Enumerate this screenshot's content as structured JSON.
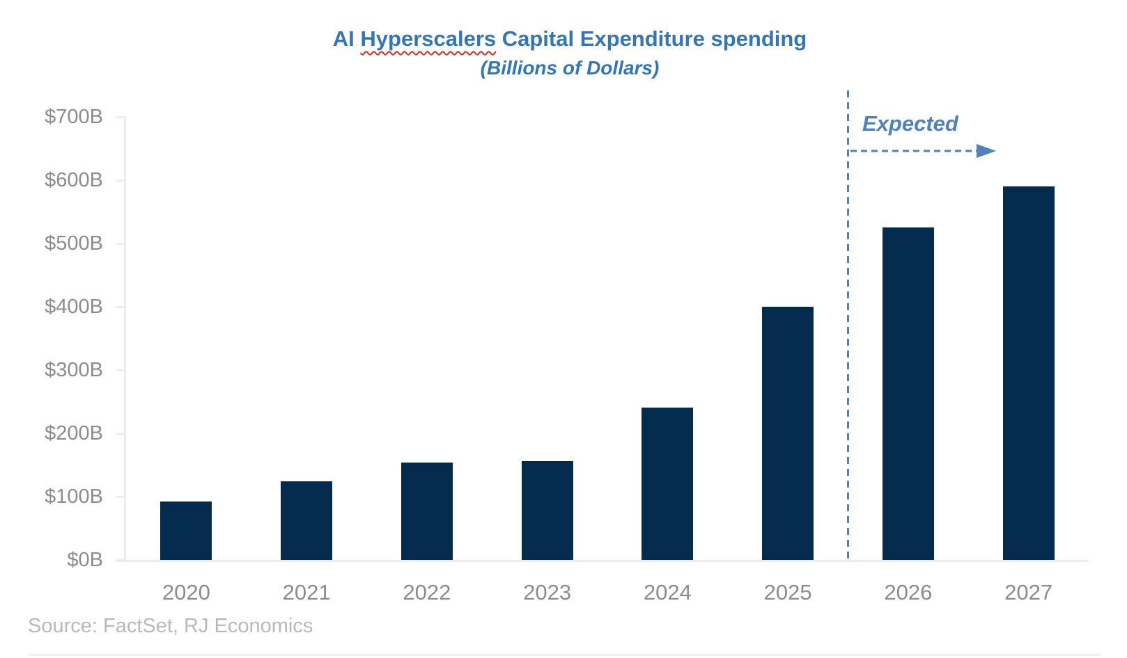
{
  "title": {
    "prefix": "AI ",
    "misspelled_word": "Hyperscalers",
    "suffix": " Capital Expenditure spending",
    "full": "AI Hyperscalers Capital Expenditure spending"
  },
  "subtitle": "(Billions of Dollars)",
  "annotation": {
    "expected_label": "Expected"
  },
  "source": "Source: FactSet, RJ Economics",
  "colors": {
    "bar": "#052c4f",
    "title_blue": "#3376b8",
    "expected_blue": "#4f81bd",
    "axis_gray": "#ececec",
    "label_gray": "#8c8c8c",
    "source_gray": "#b9b9b9",
    "squiggle_red": "#e0291d"
  },
  "chart_data": {
    "type": "bar",
    "title": "AI Hyperscalers Capital Expenditure spending",
    "subtitle": "(Billions of Dollars)",
    "categories": [
      "2020",
      "2021",
      "2022",
      "2023",
      "2024",
      "2025",
      "2026",
      "2027"
    ],
    "values": [
      92,
      124,
      154,
      156,
      241,
      400,
      525,
      590
    ],
    "unit": "billions of dollars",
    "ylabel": "",
    "xlabel": "",
    "ylim": [
      0,
      700
    ],
    "y_ticks": [
      0,
      100,
      200,
      300,
      400,
      500,
      600,
      700
    ],
    "y_tick_label_format": "$<value>B",
    "grid": false,
    "legend": "none",
    "forecast_divider_between": [
      "2025",
      "2026"
    ],
    "forecast_annotation": "Expected"
  }
}
